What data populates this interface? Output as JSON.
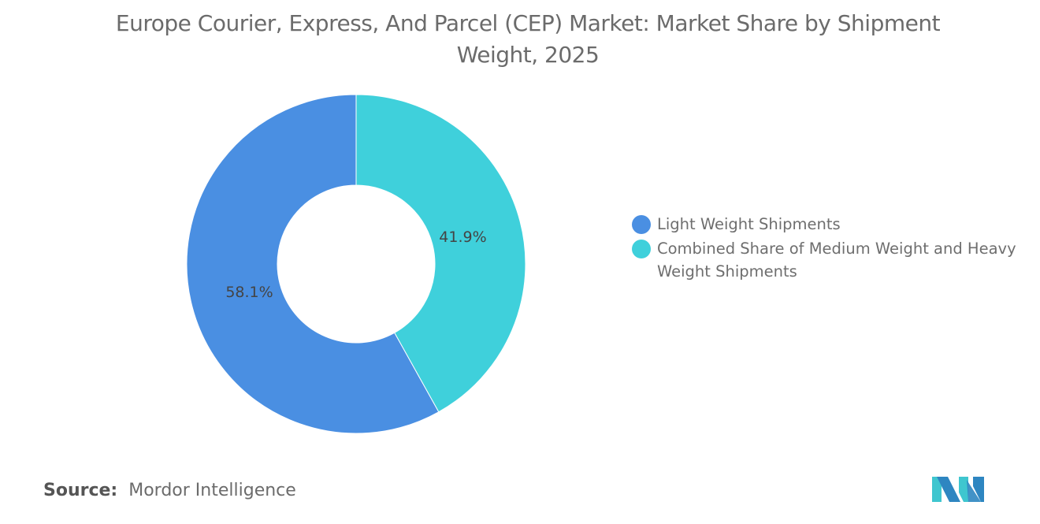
{
  "chart_data": {
    "type": "pie",
    "donut": true,
    "title": "Europe Courier, Express, And Parcel (CEP) Market: Market Share by Shipment Weight, 2025",
    "categories": [
      "Light Weight Shipments",
      "Combined Share of Medium Weight and Heavy Weight Shipments"
    ],
    "values": [
      58.1,
      41.9
    ],
    "data_labels": [
      "58.1%",
      "41.9%"
    ],
    "colors": [
      "#4A8FE2",
      "#3FD0DB"
    ],
    "legend_position": "right"
  },
  "source": {
    "label": "Source:",
    "text": "Mordor Intelligence"
  },
  "logo": {
    "colors": [
      "#2E86C1",
      "#3FC6CF"
    ]
  }
}
